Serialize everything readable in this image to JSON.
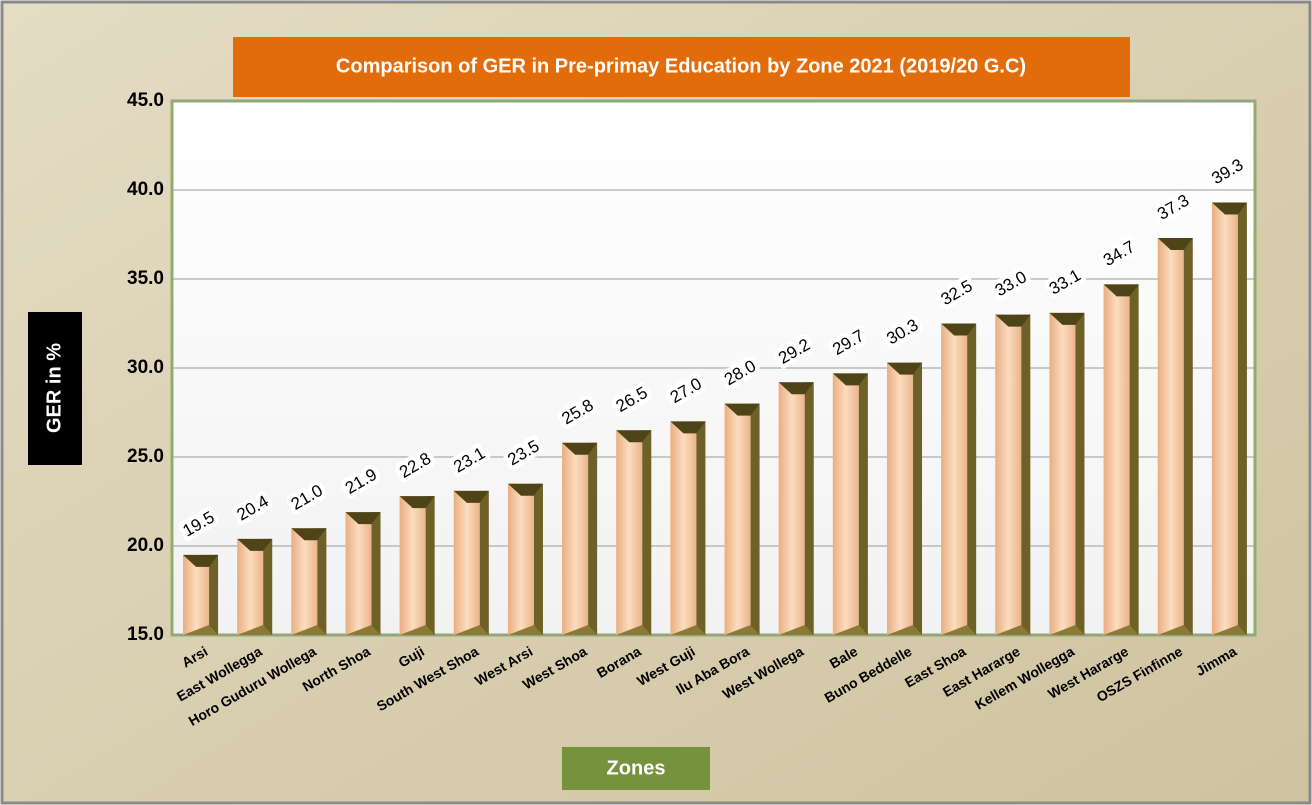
{
  "chart_data": {
    "type": "bar",
    "title": "Comparison of GER in Pre-primay Education by Zone 2021 (2019/20 G.C)",
    "y_label": "GER  in %",
    "x_label": "Zones",
    "categories": [
      "Arsi",
      "East Wollegga",
      "Horo Guduru Wollega",
      "North Shoa",
      "Guji",
      "South West Shoa",
      "West Arsi",
      "West Shoa",
      "Borana",
      "West Guji",
      "Ilu Aba Bora",
      "West Wollega",
      "Bale",
      "Buno Beddelle",
      "East Shoa",
      "East Hararge",
      "Kellem Wollegga",
      "West Hararge",
      "OSZS Finfinne",
      "Jimma"
    ],
    "values": [
      19.5,
      20.4,
      21.0,
      21.9,
      22.8,
      23.1,
      23.5,
      25.8,
      26.5,
      27.0,
      28.0,
      29.2,
      29.7,
      30.3,
      32.5,
      33.0,
      33.1,
      34.7,
      37.3,
      39.3
    ],
    "value_labels": [
      "19.5",
      "20.4",
      "21.0",
      "21.9",
      "22.8",
      "23.1",
      "23.5",
      "25.8",
      "26.5",
      "27.0",
      "28.0",
      "29.2",
      "29.7",
      "30.3",
      "32.5",
      "33.0",
      "33.1",
      "34.7",
      "37.3",
      "39.3"
    ],
    "color": "#f4c49c",
    "ylim": [
      15,
      45
    ],
    "yticks": [
      {
        "value": 15,
        "label": "15.0"
      },
      {
        "value": 20,
        "label": "20.0"
      },
      {
        "value": 25,
        "label": "25.0"
      },
      {
        "value": 30,
        "label": "30.0"
      },
      {
        "value": 35,
        "label": "35.0"
      },
      {
        "value": 40,
        "label": "40.0"
      },
      {
        "value": 45,
        "label": "45.0"
      }
    ],
    "grid": true
  }
}
